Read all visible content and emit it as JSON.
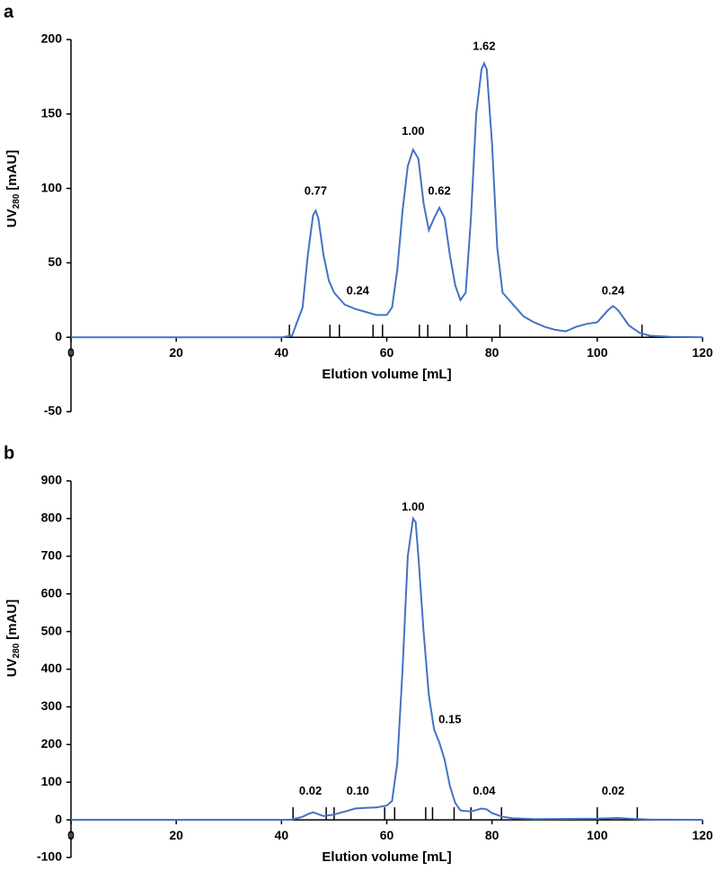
{
  "chart_data": [
    {
      "type": "line",
      "panel_label": "a",
      "xlabel": "Elution volume [mL]",
      "ylabel_main": "UV",
      "ylabel_subscript": "280",
      "ylabel_unit": "[mAU]",
      "xlim": [
        0,
        120
      ],
      "xticks": [
        0,
        20,
        40,
        60,
        80,
        100,
        120
      ],
      "ylim": [
        -50,
        200
      ],
      "yticks": [
        -50,
        0,
        50,
        100,
        150,
        200
      ],
      "color": "#4472c4",
      "x": [
        0,
        40,
        42,
        44,
        45,
        46,
        46.5,
        47,
        48,
        49,
        50,
        52,
        54,
        56,
        58,
        60,
        61,
        62,
        63,
        64,
        65,
        66,
        67,
        68,
        69,
        70,
        71,
        72,
        73,
        74,
        75,
        76,
        77,
        78,
        78.5,
        79,
        80,
        81,
        82,
        84,
        86,
        88,
        90,
        92,
        94,
        96,
        98,
        100,
        102,
        103,
        104,
        106,
        108,
        110,
        114,
        120
      ],
      "values": [
        0,
        0,
        1,
        20,
        55,
        82,
        85,
        80,
        55,
        38,
        30,
        22,
        19,
        17,
        15,
        15,
        20,
        45,
        85,
        115,
        126,
        120,
        90,
        72,
        80,
        87,
        80,
        55,
        35,
        25,
        30,
        80,
        150,
        180,
        184,
        180,
        130,
        60,
        30,
        22,
        14,
        10,
        7,
        5,
        4,
        7,
        9,
        10,
        18,
        21,
        18,
        8,
        3,
        1,
        0.3,
        0
      ],
      "fraction_marks": [
        41.5,
        49.2,
        51,
        57.4,
        59.2,
        66.2,
        67.8,
        72,
        75.2,
        81.5,
        108.5
      ],
      "annotations": [
        "0.77",
        "0.24",
        "1.00",
        "0.62",
        "1.62",
        "0.24"
      ]
    },
    {
      "type": "line",
      "panel_label": "b",
      "xlabel": "Elution volume [mL]",
      "ylabel_main": "UV",
      "ylabel_subscript": "280",
      "ylabel_unit": "[mAU]",
      "xlim": [
        0,
        120
      ],
      "xticks": [
        0,
        20,
        40,
        60,
        80,
        100,
        120
      ],
      "ylim": [
        -100,
        900
      ],
      "yticks": [
        -100,
        0,
        100,
        200,
        300,
        400,
        500,
        600,
        700,
        800,
        900
      ],
      "color": "#4472c4",
      "x": [
        0,
        40,
        42,
        44,
        45,
        46,
        47,
        48,
        50,
        52,
        54,
        56,
        58,
        60,
        61,
        62,
        63,
        64,
        65,
        65.5,
        66,
        67,
        68,
        69,
        70,
        71,
        72,
        73,
        74,
        76,
        78,
        79,
        80,
        82,
        84,
        88,
        100,
        104,
        106,
        110,
        120
      ],
      "values": [
        0,
        0,
        1,
        8,
        15,
        20,
        15,
        10,
        14,
        22,
        30,
        32,
        33,
        38,
        50,
        150,
        400,
        700,
        800,
        790,
        700,
        500,
        330,
        240,
        205,
        160,
        90,
        45,
        25,
        22,
        30,
        28,
        18,
        8,
        4,
        2,
        3,
        5,
        3,
        1,
        0
      ],
      "fraction_marks": [
        42.2,
        48.5,
        50,
        59.6,
        61.5,
        67.4,
        68.7,
        72.8,
        76,
        81.8,
        100,
        107.6
      ],
      "annotations": [
        "0.02",
        "0.10",
        "1.00",
        "0.15",
        "0.04",
        "0.02"
      ]
    }
  ]
}
